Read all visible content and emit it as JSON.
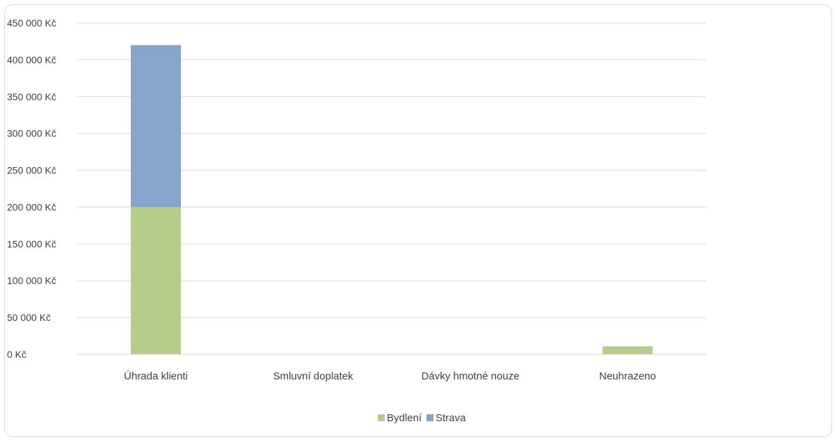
{
  "chart_data": {
    "type": "bar",
    "stacked": true,
    "categories": [
      "Úhrada klienti",
      "Smluvní doplatek",
      "Dávky hmotné nouze",
      "Neuhrazeno"
    ],
    "series": [
      {
        "name": "Bydlení",
        "color": "#b5cc8a",
        "values": [
          200000,
          0,
          0,
          11000
        ]
      },
      {
        "name": "Strava",
        "color": "#87a4ca",
        "values": [
          220000,
          0,
          0,
          0
        ]
      }
    ],
    "ylim": [
      0,
      450000
    ],
    "yticks": [
      0,
      50000,
      100000,
      150000,
      200000,
      250000,
      300000,
      350000,
      400000,
      450000
    ],
    "ytick_labels": [
      "0 Kč",
      "50 000 Kč",
      "100 000 Kč",
      "150 000 Kč",
      "200 000 Kč",
      "250 000 Kč",
      "300 000 Kč",
      "350 000 Kč",
      "400 000 Kč",
      "450 000 Kč"
    ],
    "title": "",
    "xlabel": "",
    "ylabel": "",
    "grid": true,
    "legend_position": "bottom",
    "gridline_color": "#d9d9d9"
  }
}
